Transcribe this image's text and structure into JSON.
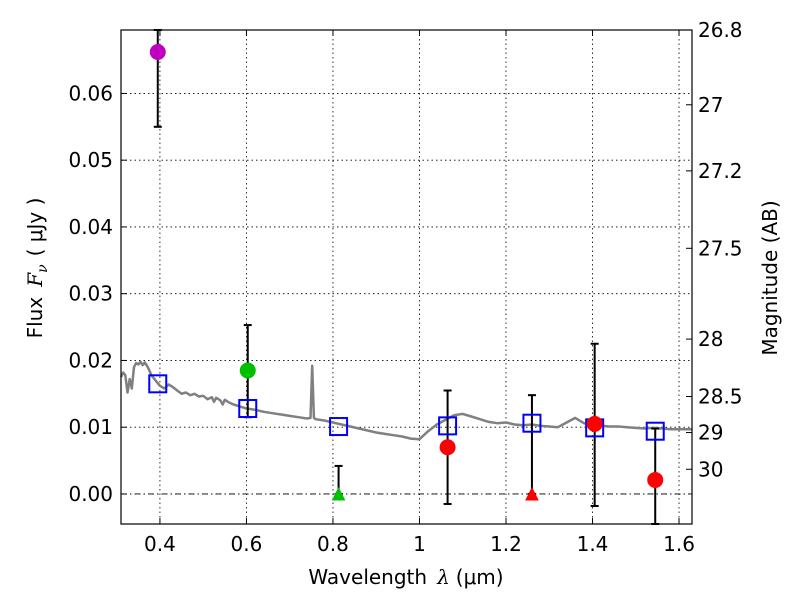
{
  "chart_data": {
    "type": "scatter",
    "xlabel_prefix": "Wavelength",
    "xlabel_symbol": "λ",
    "xlabel_unit": "(μm)",
    "ylabel_prefix": "Flux",
    "ylabel_symbol": "F",
    "ylabel_subscript": "ν",
    "ylabel_unit": "( μJy )",
    "y2label": "Magnitude (AB)",
    "xlim": [
      0.31,
      1.63
    ],
    "ylim": [
      -0.0045,
      0.0695
    ],
    "grid": true,
    "xticks": [
      {
        "v": 0.4,
        "label": "0.4"
      },
      {
        "v": 0.6,
        "label": "0.6"
      },
      {
        "v": 0.8,
        "label": "0.8"
      },
      {
        "v": 1.0,
        "label": "1"
      },
      {
        "v": 1.2,
        "label": "1.2"
      },
      {
        "v": 1.4,
        "label": "1.4"
      },
      {
        "v": 1.6,
        "label": "1.6"
      }
    ],
    "yticks": [
      {
        "v": 0.0,
        "label": "0.00"
      },
      {
        "v": 0.01,
        "label": "0.01"
      },
      {
        "v": 0.02,
        "label": "0.02"
      },
      {
        "v": 0.03,
        "label": "0.03"
      },
      {
        "v": 0.04,
        "label": "0.04"
      },
      {
        "v": 0.05,
        "label": "0.05"
      },
      {
        "v": 0.06,
        "label": "0.06"
      }
    ],
    "y2ticks": [
      {
        "flux": 0.0695,
        "label": "26.8"
      },
      {
        "flux": 0.0583,
        "label": "27"
      },
      {
        "flux": 0.0484,
        "label": "27.2"
      },
      {
        "flux": 0.0368,
        "label": "27.5"
      },
      {
        "flux": 0.0232,
        "label": "28"
      },
      {
        "flux": 0.0146,
        "label": "28.5"
      },
      {
        "flux": 0.0092,
        "label": "29"
      },
      {
        "flux": 0.0037,
        "label": "30"
      }
    ],
    "spectrum": [
      [
        0.31,
        0.0175
      ],
      [
        0.315,
        0.0182
      ],
      [
        0.32,
        0.0178
      ],
      [
        0.325,
        0.0152
      ],
      [
        0.33,
        0.0172
      ],
      [
        0.335,
        0.0158
      ],
      [
        0.34,
        0.019
      ],
      [
        0.345,
        0.0196
      ],
      [
        0.35,
        0.0194
      ],
      [
        0.355,
        0.0198
      ],
      [
        0.36,
        0.0193
      ],
      [
        0.365,
        0.0197
      ],
      [
        0.37,
        0.0192
      ],
      [
        0.375,
        0.0186
      ],
      [
        0.38,
        0.0178
      ],
      [
        0.39,
        0.017
      ],
      [
        0.4,
        0.0162
      ],
      [
        0.41,
        0.0158
      ],
      [
        0.42,
        0.0164
      ],
      [
        0.43,
        0.016
      ],
      [
        0.44,
        0.0155
      ],
      [
        0.45,
        0.015
      ],
      [
        0.46,
        0.0152
      ],
      [
        0.47,
        0.0148
      ],
      [
        0.48,
        0.015
      ],
      [
        0.49,
        0.0146
      ],
      [
        0.5,
        0.0147
      ],
      [
        0.51,
        0.0142
      ],
      [
        0.52,
        0.0145
      ],
      [
        0.525,
        0.0138
      ],
      [
        0.53,
        0.0144
      ],
      [
        0.54,
        0.014
      ],
      [
        0.545,
        0.0134
      ],
      [
        0.55,
        0.0141
      ],
      [
        0.56,
        0.0137
      ],
      [
        0.57,
        0.0134
      ],
      [
        0.58,
        0.0132
      ],
      [
        0.59,
        0.013
      ],
      [
        0.6,
        0.0128
      ],
      [
        0.62,
        0.0126
      ],
      [
        0.64,
        0.0123
      ],
      [
        0.66,
        0.0121
      ],
      [
        0.68,
        0.0119
      ],
      [
        0.7,
        0.0117
      ],
      [
        0.72,
        0.0115
      ],
      [
        0.74,
        0.0113
      ],
      [
        0.748,
        0.0114
      ],
      [
        0.752,
        0.0192
      ],
      [
        0.756,
        0.0114
      ],
      [
        0.76,
        0.0112
      ],
      [
        0.78,
        0.011
      ],
      [
        0.8,
        0.0107
      ],
      [
        0.82,
        0.0104
      ],
      [
        0.84,
        0.0101
      ],
      [
        0.86,
        0.0098
      ],
      [
        0.88,
        0.0095
      ],
      [
        0.9,
        0.0092
      ],
      [
        0.92,
        0.009
      ],
      [
        0.94,
        0.0088
      ],
      [
        0.96,
        0.0086
      ],
      [
        0.98,
        0.0083
      ],
      [
        1.0,
        0.0082
      ],
      [
        1.02,
        0.0094
      ],
      [
        1.04,
        0.0104
      ],
      [
        1.06,
        0.0111
      ],
      [
        1.08,
        0.0118
      ],
      [
        1.1,
        0.012
      ],
      [
        1.12,
        0.0116
      ],
      [
        1.14,
        0.0112
      ],
      [
        1.16,
        0.0108
      ],
      [
        1.18,
        0.0106
      ],
      [
        1.2,
        0.0107
      ],
      [
        1.22,
        0.0104
      ],
      [
        1.24,
        0.0103
      ],
      [
        1.26,
        0.0104
      ],
      [
        1.28,
        0.0102
      ],
      [
        1.3,
        0.0101
      ],
      [
        1.32,
        0.01
      ],
      [
        1.34,
        0.0107
      ],
      [
        1.36,
        0.0114
      ],
      [
        1.38,
        0.0106
      ],
      [
        1.4,
        0.0103
      ],
      [
        1.42,
        0.0102
      ],
      [
        1.44,
        0.0101
      ],
      [
        1.46,
        0.0101
      ],
      [
        1.48,
        0.01
      ],
      [
        1.5,
        0.0099
      ],
      [
        1.52,
        0.0098
      ],
      [
        1.54,
        0.0099
      ],
      [
        1.56,
        0.0098
      ],
      [
        1.58,
        0.0097
      ],
      [
        1.6,
        0.0097
      ],
      [
        1.63,
        0.0097
      ]
    ],
    "model_points": [
      {
        "x": 0.395,
        "y": 0.0165
      },
      {
        "x": 0.603,
        "y": 0.0128
      },
      {
        "x": 0.813,
        "y": 0.0101
      },
      {
        "x": 1.065,
        "y": 0.0102
      },
      {
        "x": 1.26,
        "y": 0.0106
      },
      {
        "x": 1.405,
        "y": 0.0099
      },
      {
        "x": 1.545,
        "y": 0.0094
      }
    ],
    "observed": [
      {
        "x": 0.395,
        "y": 0.0662,
        "yerr_lo": 0.055,
        "yerr_hi": 0.0695,
        "marker": "circle",
        "color": "#bf00bf"
      },
      {
        "x": 0.603,
        "y": 0.0185,
        "yerr_lo": 0.0115,
        "yerr_hi": 0.0253,
        "marker": "circle",
        "color": "#00c000"
      },
      {
        "x": 0.813,
        "y": 0.0,
        "yerr_lo": 0.0,
        "yerr_hi": 0.0042,
        "marker": "triangle",
        "color": "#00c000"
      },
      {
        "x": 1.065,
        "y": 0.007,
        "yerr_lo": -0.0015,
        "yerr_hi": 0.0155,
        "marker": "circle",
        "color": "#ff0000"
      },
      {
        "x": 1.26,
        "y": 0.0,
        "yerr_lo": 0.0,
        "yerr_hi": 0.0148,
        "marker": "triangle",
        "color": "#ff0000"
      },
      {
        "x": 1.405,
        "y": 0.0105,
        "yerr_lo": -0.0018,
        "yerr_hi": 0.0225,
        "marker": "circle",
        "color": "#ff0000"
      },
      {
        "x": 1.545,
        "y": 0.0021,
        "yerr_lo": -0.0045,
        "yerr_hi": 0.0098,
        "marker": "circle",
        "color": "#ff0000"
      }
    ],
    "colors": {
      "spectrum": "#808080",
      "model": "#0000ff",
      "errorbar": "#000000",
      "grid": "#000000"
    }
  }
}
